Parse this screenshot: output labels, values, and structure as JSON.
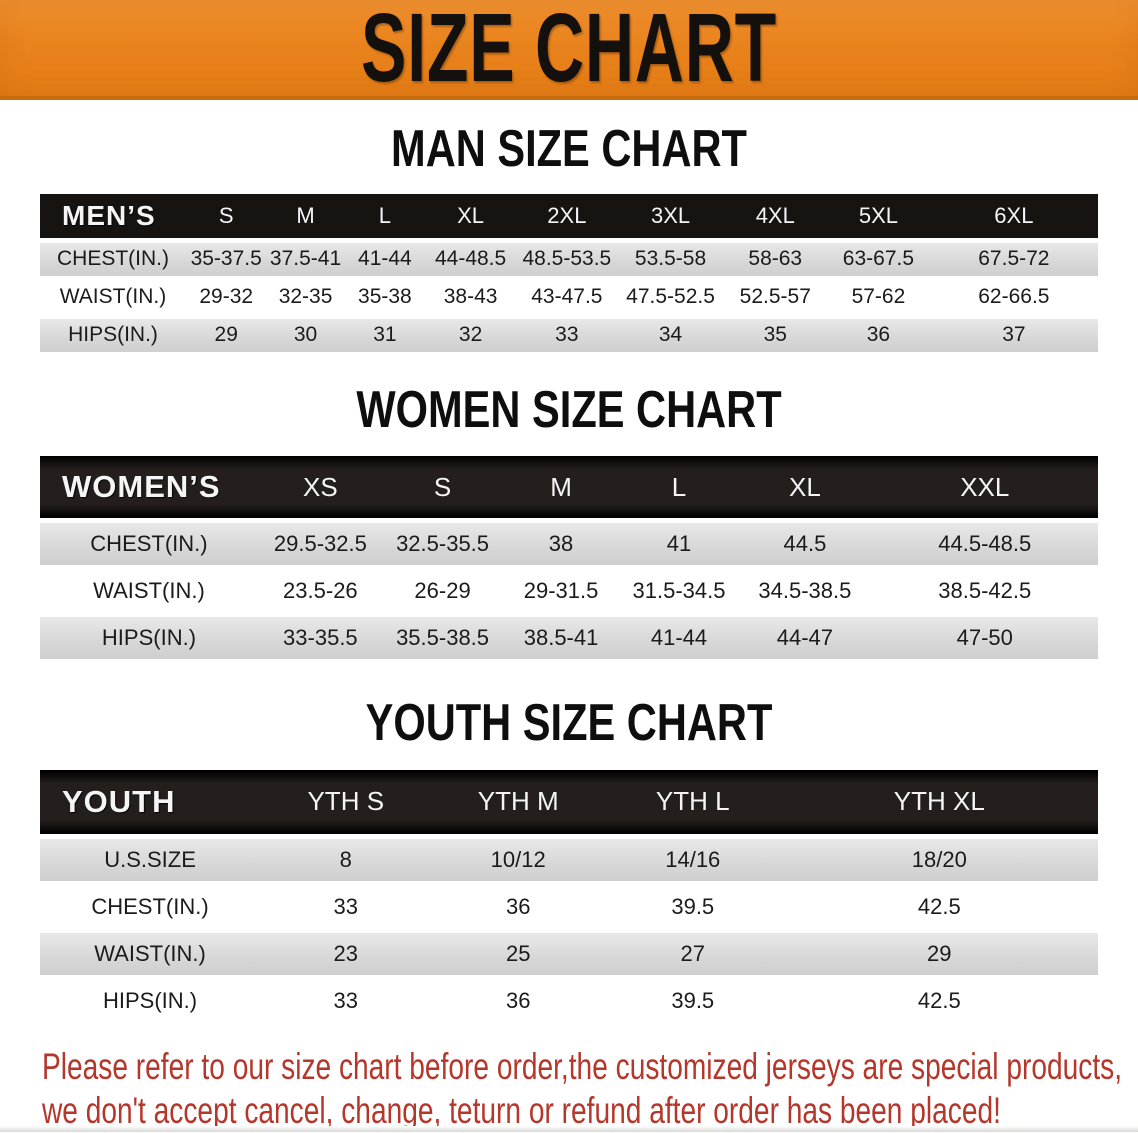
{
  "banner": {
    "title": "SIZE CHART",
    "background_color": "#e9831d",
    "text_color": "#14100d"
  },
  "theme": {
    "header_bar_color": "#171310",
    "stripe_row_color": "#d9d9d9",
    "notice_text_color": "#b5362a"
  },
  "sections": [
    {
      "id": "men",
      "title": "MAN SIZE CHART",
      "table": {
        "corner_label": "MEN’S",
        "columns": [
          "S",
          "M",
          "L",
          "XL",
          "2XL",
          "3XL",
          "4XL",
          "5XL",
          "6XL"
        ],
        "rows": [
          {
            "label": "CHEST(IN.)",
            "values": [
              "35-37.5",
              "37.5-41",
              "41-44",
              "44-48.5",
              "48.5-53.5",
              "53.5-58",
              "58-63",
              "63-67.5",
              "67.5-72"
            ]
          },
          {
            "label": "WAIST(IN.)",
            "values": [
              "29-32",
              "32-35",
              "35-38",
              "38-43",
              "43-47.5",
              "47.5-52.5",
              "52.5-57",
              "57-62",
              "62-66.5"
            ]
          },
          {
            "label": "HIPS(IN.)",
            "values": [
              "29",
              "30",
              "31",
              "32",
              "33",
              "34",
              "35",
              "36",
              "37"
            ]
          }
        ]
      }
    },
    {
      "id": "women",
      "title": "WOMEN SIZE CHART",
      "table": {
        "corner_label": "WOMEN’S",
        "columns": [
          "XS",
          "S",
          "M",
          "L",
          "XL",
          "XXL"
        ],
        "rows": [
          {
            "label": "CHEST(IN.)",
            "values": [
              "29.5-32.5",
              "32.5-35.5",
              "38",
              "41",
              "44.5",
              "44.5-48.5"
            ]
          },
          {
            "label": "WAIST(IN.)",
            "values": [
              "23.5-26",
              "26-29",
              "29-31.5",
              "31.5-34.5",
              "34.5-38.5",
              "38.5-42.5"
            ]
          },
          {
            "label": "HIPS(IN.)",
            "values": [
              "33-35.5",
              "35.5-38.5",
              "38.5-41",
              "41-44",
              "44-47",
              "47-50"
            ]
          }
        ]
      }
    },
    {
      "id": "youth",
      "title": "YOUTH SIZE CHART",
      "table": {
        "corner_label": "YOUTH",
        "columns": [
          "YTH S",
          "YTH M",
          "YTH L",
          "YTH XL"
        ],
        "rows": [
          {
            "label": "U.S.SIZE",
            "values": [
              "8",
              "10/12",
              "14/16",
              "18/20"
            ]
          },
          {
            "label": "CHEST(IN.)",
            "values": [
              "33",
              "36",
              "39.5",
              "42.5"
            ]
          },
          {
            "label": "WAIST(IN.)",
            "values": [
              "23",
              "25",
              "27",
              "29"
            ]
          },
          {
            "label": "HIPS(IN.)",
            "values": [
              "33",
              "36",
              "39.5",
              "42.5"
            ]
          }
        ]
      }
    }
  ],
  "footer": {
    "lines": [
      "Please refer to our size chart before order,the customized jerseys are special products,",
      "we don't accept cancel, change, teturn or refund after order has been placed!"
    ]
  }
}
